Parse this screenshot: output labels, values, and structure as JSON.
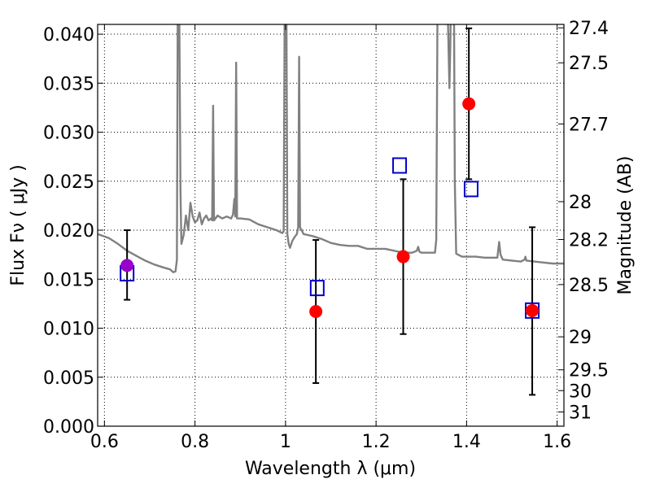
{
  "chart_data": {
    "type": "scatter",
    "xlabel": "Wavelength  λ (μm)",
    "ylabel": "Flux  Fν  ( μJy )",
    "y2label": "Magnitude (AB)",
    "xlim": [
      0.585,
      1.615
    ],
    "ylim": [
      0.0,
      0.041
    ],
    "grid": true,
    "x_ticks": [
      {
        "value": 0.6,
        "label": "0.6"
      },
      {
        "value": 0.8,
        "label": "0.8"
      },
      {
        "value": 1.0,
        "label": "1"
      },
      {
        "value": 1.2,
        "label": "1.2"
      },
      {
        "value": 1.4,
        "label": "1.4"
      },
      {
        "value": 1.6,
        "label": "1.6"
      }
    ],
    "y_ticks": [
      {
        "value": 0.0,
        "label": "0.000"
      },
      {
        "value": 0.005,
        "label": "0.005"
      },
      {
        "value": 0.01,
        "label": "0.010"
      },
      {
        "value": 0.015,
        "label": "0.015"
      },
      {
        "value": 0.02,
        "label": "0.020"
      },
      {
        "value": 0.025,
        "label": "0.025"
      },
      {
        "value": 0.03,
        "label": "0.030"
      },
      {
        "value": 0.035,
        "label": "0.035"
      },
      {
        "value": 0.04,
        "label": "0.040"
      }
    ],
    "y2_ticks": [
      {
        "flux": 0.04065,
        "label": "27.4"
      },
      {
        "flux": 0.03708,
        "label": "27.5"
      },
      {
        "flux": 0.03084,
        "label": "27.7"
      },
      {
        "flux": 0.02291,
        "label": "28"
      },
      {
        "flux": 0.01905,
        "label": "28.2"
      },
      {
        "flux": 0.01445,
        "label": "28.5"
      },
      {
        "flux": 0.00912,
        "label": "29"
      },
      {
        "flux": 0.00575,
        "label": "29.5"
      },
      {
        "flux": 0.00363,
        "label": "30"
      },
      {
        "flux": 0.00145,
        "label": "31"
      }
    ],
    "model_spectrum": {
      "color": "#808080",
      "points": [
        [
          0.585,
          0.0196
        ],
        [
          0.61,
          0.0192
        ],
        [
          0.63,
          0.0186
        ],
        [
          0.65,
          0.0179
        ],
        [
          0.67,
          0.0174
        ],
        [
          0.69,
          0.0169
        ],
        [
          0.71,
          0.0165
        ],
        [
          0.73,
          0.0162
        ],
        [
          0.745,
          0.016
        ],
        [
          0.752,
          0.0157
        ],
        [
          0.757,
          0.0158
        ],
        [
          0.76,
          0.017
        ],
        [
          0.762,
          0.045
        ],
        [
          0.765,
          0.045
        ],
        [
          0.768,
          0.024
        ],
        [
          0.77,
          0.0186
        ],
        [
          0.775,
          0.0195
        ],
        [
          0.78,
          0.0215
        ],
        [
          0.785,
          0.02
        ],
        [
          0.79,
          0.0228
        ],
        [
          0.795,
          0.0214
        ],
        [
          0.8,
          0.0208
        ],
        [
          0.805,
          0.021
        ],
        [
          0.81,
          0.0218
        ],
        [
          0.815,
          0.0206
        ],
        [
          0.82,
          0.0212
        ],
        [
          0.825,
          0.0215
        ],
        [
          0.83,
          0.021
        ],
        [
          0.835,
          0.0212
        ],
        [
          0.838,
          0.021
        ],
        [
          0.84,
          0.0327
        ],
        [
          0.842,
          0.021
        ],
        [
          0.85,
          0.0215
        ],
        [
          0.86,
          0.0212
        ],
        [
          0.87,
          0.0214
        ],
        [
          0.88,
          0.0212
        ],
        [
          0.884,
          0.0216
        ],
        [
          0.887,
          0.0232
        ],
        [
          0.889,
          0.0214
        ],
        [
          0.891,
          0.0371
        ],
        [
          0.893,
          0.0212
        ],
        [
          0.9,
          0.0212
        ],
        [
          0.92,
          0.0211
        ],
        [
          0.94,
          0.0206
        ],
        [
          0.96,
          0.0203
        ],
        [
          0.98,
          0.02
        ],
        [
          0.993,
          0.0197
        ],
        [
          0.996,
          0.0199
        ],
        [
          0.998,
          0.042
        ],
        [
          1.002,
          0.042
        ],
        [
          1.004,
          0.0196
        ],
        [
          1.007,
          0.0186
        ],
        [
          1.01,
          0.0182
        ],
        [
          1.015,
          0.0189
        ],
        [
          1.02,
          0.0193
        ],
        [
          1.025,
          0.0196
        ],
        [
          1.028,
          0.0203
        ],
        [
          1.03,
          0.0377
        ],
        [
          1.032,
          0.0203
        ],
        [
          1.04,
          0.0196
        ],
        [
          1.06,
          0.0194
        ],
        [
          1.08,
          0.0191
        ],
        [
          1.1,
          0.0187
        ],
        [
          1.12,
          0.0185
        ],
        [
          1.14,
          0.0184
        ],
        [
          1.16,
          0.0184
        ],
        [
          1.18,
          0.0181
        ],
        [
          1.2,
          0.0181
        ],
        [
          1.22,
          0.0181
        ],
        [
          1.24,
          0.0179
        ],
        [
          1.26,
          0.0177
        ],
        [
          1.28,
          0.0177
        ],
        [
          1.29,
          0.0179
        ],
        [
          1.293,
          0.0183
        ],
        [
          1.296,
          0.0178
        ],
        [
          1.3,
          0.0177
        ],
        [
          1.31,
          0.0177
        ],
        [
          1.32,
          0.0177
        ],
        [
          1.33,
          0.0177
        ],
        [
          1.333,
          0.019
        ],
        [
          1.336,
          0.045
        ],
        [
          1.357,
          0.045
        ],
        [
          1.36,
          0.039
        ],
        [
          1.362,
          0.0345
        ],
        [
          1.364,
          0.039
        ],
        [
          1.366,
          0.045
        ],
        [
          1.372,
          0.045
        ],
        [
          1.374,
          0.025
        ],
        [
          1.377,
          0.0176
        ],
        [
          1.39,
          0.0173
        ],
        [
          1.4,
          0.0173
        ],
        [
          1.42,
          0.0173
        ],
        [
          1.44,
          0.0172
        ],
        [
          1.46,
          0.0172
        ],
        [
          1.468,
          0.0172
        ],
        [
          1.472,
          0.0188
        ],
        [
          1.475,
          0.0175
        ],
        [
          1.48,
          0.017
        ],
        [
          1.5,
          0.0169
        ],
        [
          1.52,
          0.0168
        ],
        [
          1.528,
          0.017
        ],
        [
          1.53,
          0.0173
        ],
        [
          1.532,
          0.0169
        ],
        [
          1.55,
          0.0168
        ],
        [
          1.57,
          0.0167
        ],
        [
          1.59,
          0.0166
        ],
        [
          1.615,
          0.0166
        ]
      ]
    },
    "model_bands": {
      "marker": "open-square",
      "color": "#0000cc",
      "points": [
        {
          "x": 0.65,
          "y": 0.0156
        },
        {
          "x": 1.07,
          "y": 0.0141
        },
        {
          "x": 1.252,
          "y": 0.0266
        },
        {
          "x": 1.41,
          "y": 0.0242
        },
        {
          "x": 1.545,
          "y": 0.0118
        }
      ]
    },
    "observed": {
      "marker": "filled-circle",
      "color": "#ff0000",
      "points": [
        {
          "x": 0.65,
          "y": 0.0164,
          "err_low": 0.0129,
          "err_high": 0.02,
          "color": "#9900cc"
        },
        {
          "x": 1.067,
          "y": 0.0117,
          "err_low": 0.0044,
          "err_high": 0.019
        },
        {
          "x": 1.26,
          "y": 0.0173,
          "err_low": 0.0094,
          "err_high": 0.0252
        },
        {
          "x": 1.405,
          "y": 0.0329,
          "err_low": 0.0252,
          "err_high": 0.0406
        },
        {
          "x": 1.545,
          "y": 0.0118,
          "err_low": 0.0032,
          "err_high": 0.0203
        }
      ]
    }
  }
}
